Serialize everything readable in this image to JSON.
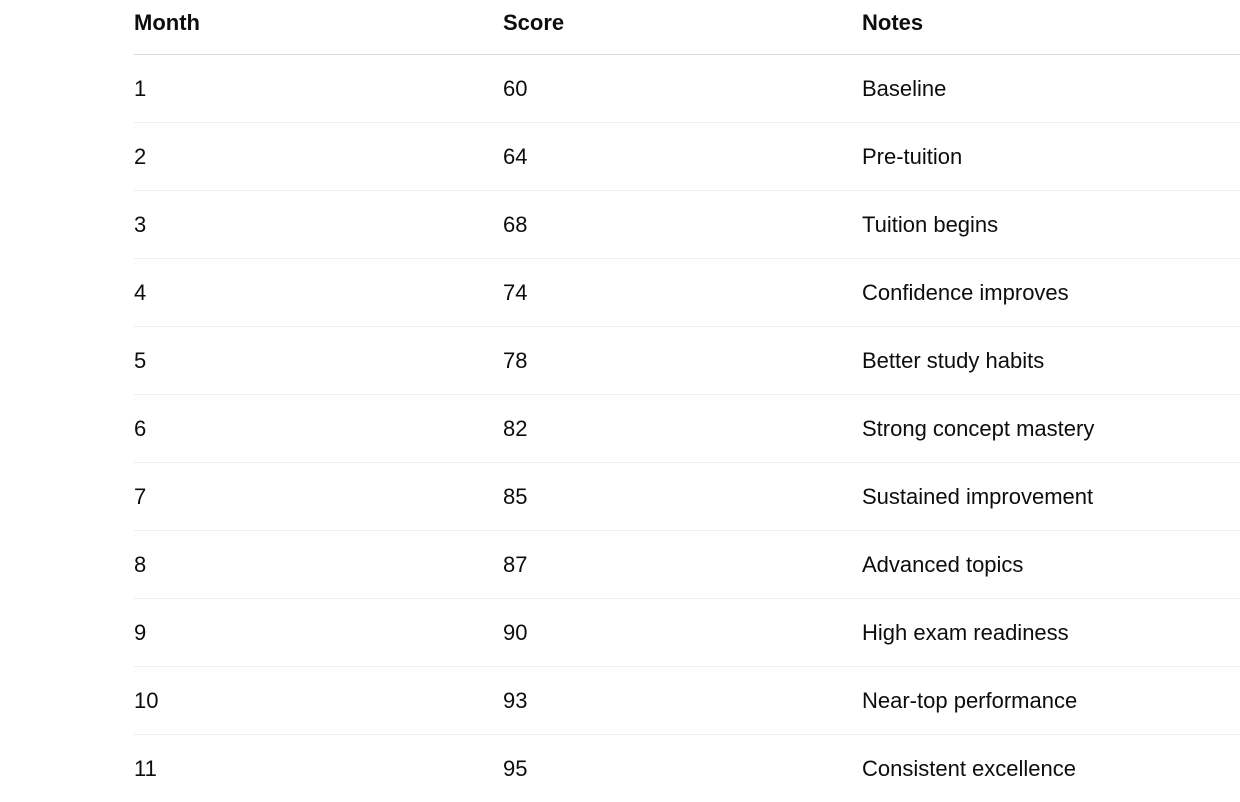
{
  "page": {
    "background": "#ffffff"
  },
  "colors": {
    "text": "#0d0d0d",
    "header_border": "#d9d9de",
    "row_divider": "#efefef"
  },
  "table": {
    "headers": [
      "Month",
      "Score",
      "Notes"
    ],
    "rows": [
      {
        "month": "1",
        "score": "60",
        "notes": "Baseline"
      },
      {
        "month": "2",
        "score": "64",
        "notes": "Pre-tuition"
      },
      {
        "month": "3",
        "score": "68",
        "notes": "Tuition begins"
      },
      {
        "month": "4",
        "score": "74",
        "notes": "Confidence improves"
      },
      {
        "month": "5",
        "score": "78",
        "notes": "Better study habits"
      },
      {
        "month": "6",
        "score": "82",
        "notes": "Strong concept mastery"
      },
      {
        "month": "7",
        "score": "85",
        "notes": "Sustained improvement"
      },
      {
        "month": "8",
        "score": "87",
        "notes": "Advanced topics"
      },
      {
        "month": "9",
        "score": "90",
        "notes": "High exam readiness"
      },
      {
        "month": "10",
        "score": "93",
        "notes": "Near-top performance"
      },
      {
        "month": "11",
        "score": "95",
        "notes": "Consistent excellence"
      }
    ]
  },
  "chart_data": {
    "type": "table",
    "columns": [
      "Month",
      "Score",
      "Notes"
    ],
    "rows": [
      [
        1,
        60,
        "Baseline"
      ],
      [
        2,
        64,
        "Pre-tuition"
      ],
      [
        3,
        68,
        "Tuition begins"
      ],
      [
        4,
        74,
        "Confidence improves"
      ],
      [
        5,
        78,
        "Better study habits"
      ],
      [
        6,
        82,
        "Strong concept mastery"
      ],
      [
        7,
        85,
        "Sustained improvement"
      ],
      [
        8,
        87,
        "Advanced topics"
      ],
      [
        9,
        90,
        "High exam readiness"
      ],
      [
        10,
        93,
        "Near-top performance"
      ],
      [
        11,
        95,
        "Consistent excellence"
      ]
    ]
  }
}
